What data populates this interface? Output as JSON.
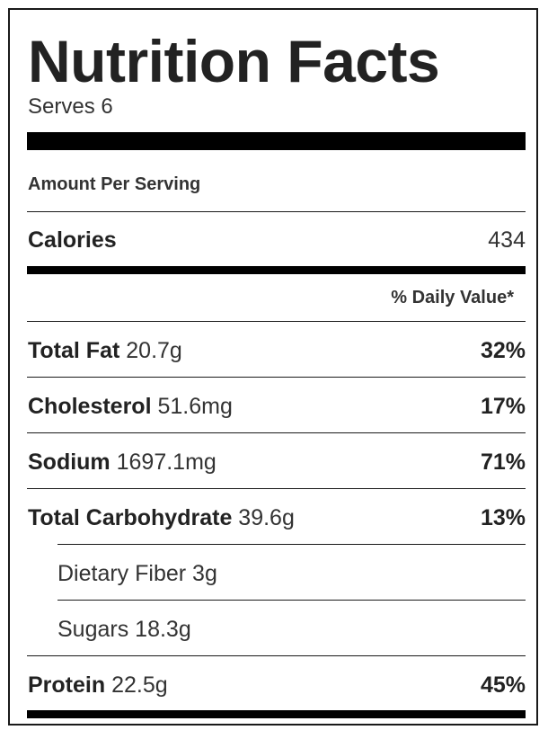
{
  "label": {
    "title": "Nutrition Facts",
    "serves": "Serves 6",
    "amount_per_serving": "Amount Per Serving",
    "calories": {
      "name": "Calories",
      "value": "434"
    },
    "daily_value_header": "% Daily Value*",
    "nutrients": [
      {
        "name": "Total Fat",
        "amount": "20.7g",
        "daily_value": "32%"
      },
      {
        "name": "Cholesterol",
        "amount": "51.6mg",
        "daily_value": "17%"
      },
      {
        "name": "Sodium",
        "amount": "1697.1mg",
        "daily_value": "71%"
      },
      {
        "name": "Total Carbohydrate",
        "amount": "39.6g",
        "daily_value": "13%"
      }
    ],
    "sub_nutrients": [
      {
        "name": "Dietary Fiber",
        "amount": "3g"
      },
      {
        "name": "Sugars",
        "amount": "18.3g"
      }
    ],
    "protein": {
      "name": "Protein",
      "amount": "22.5g",
      "daily_value": "45%"
    }
  }
}
